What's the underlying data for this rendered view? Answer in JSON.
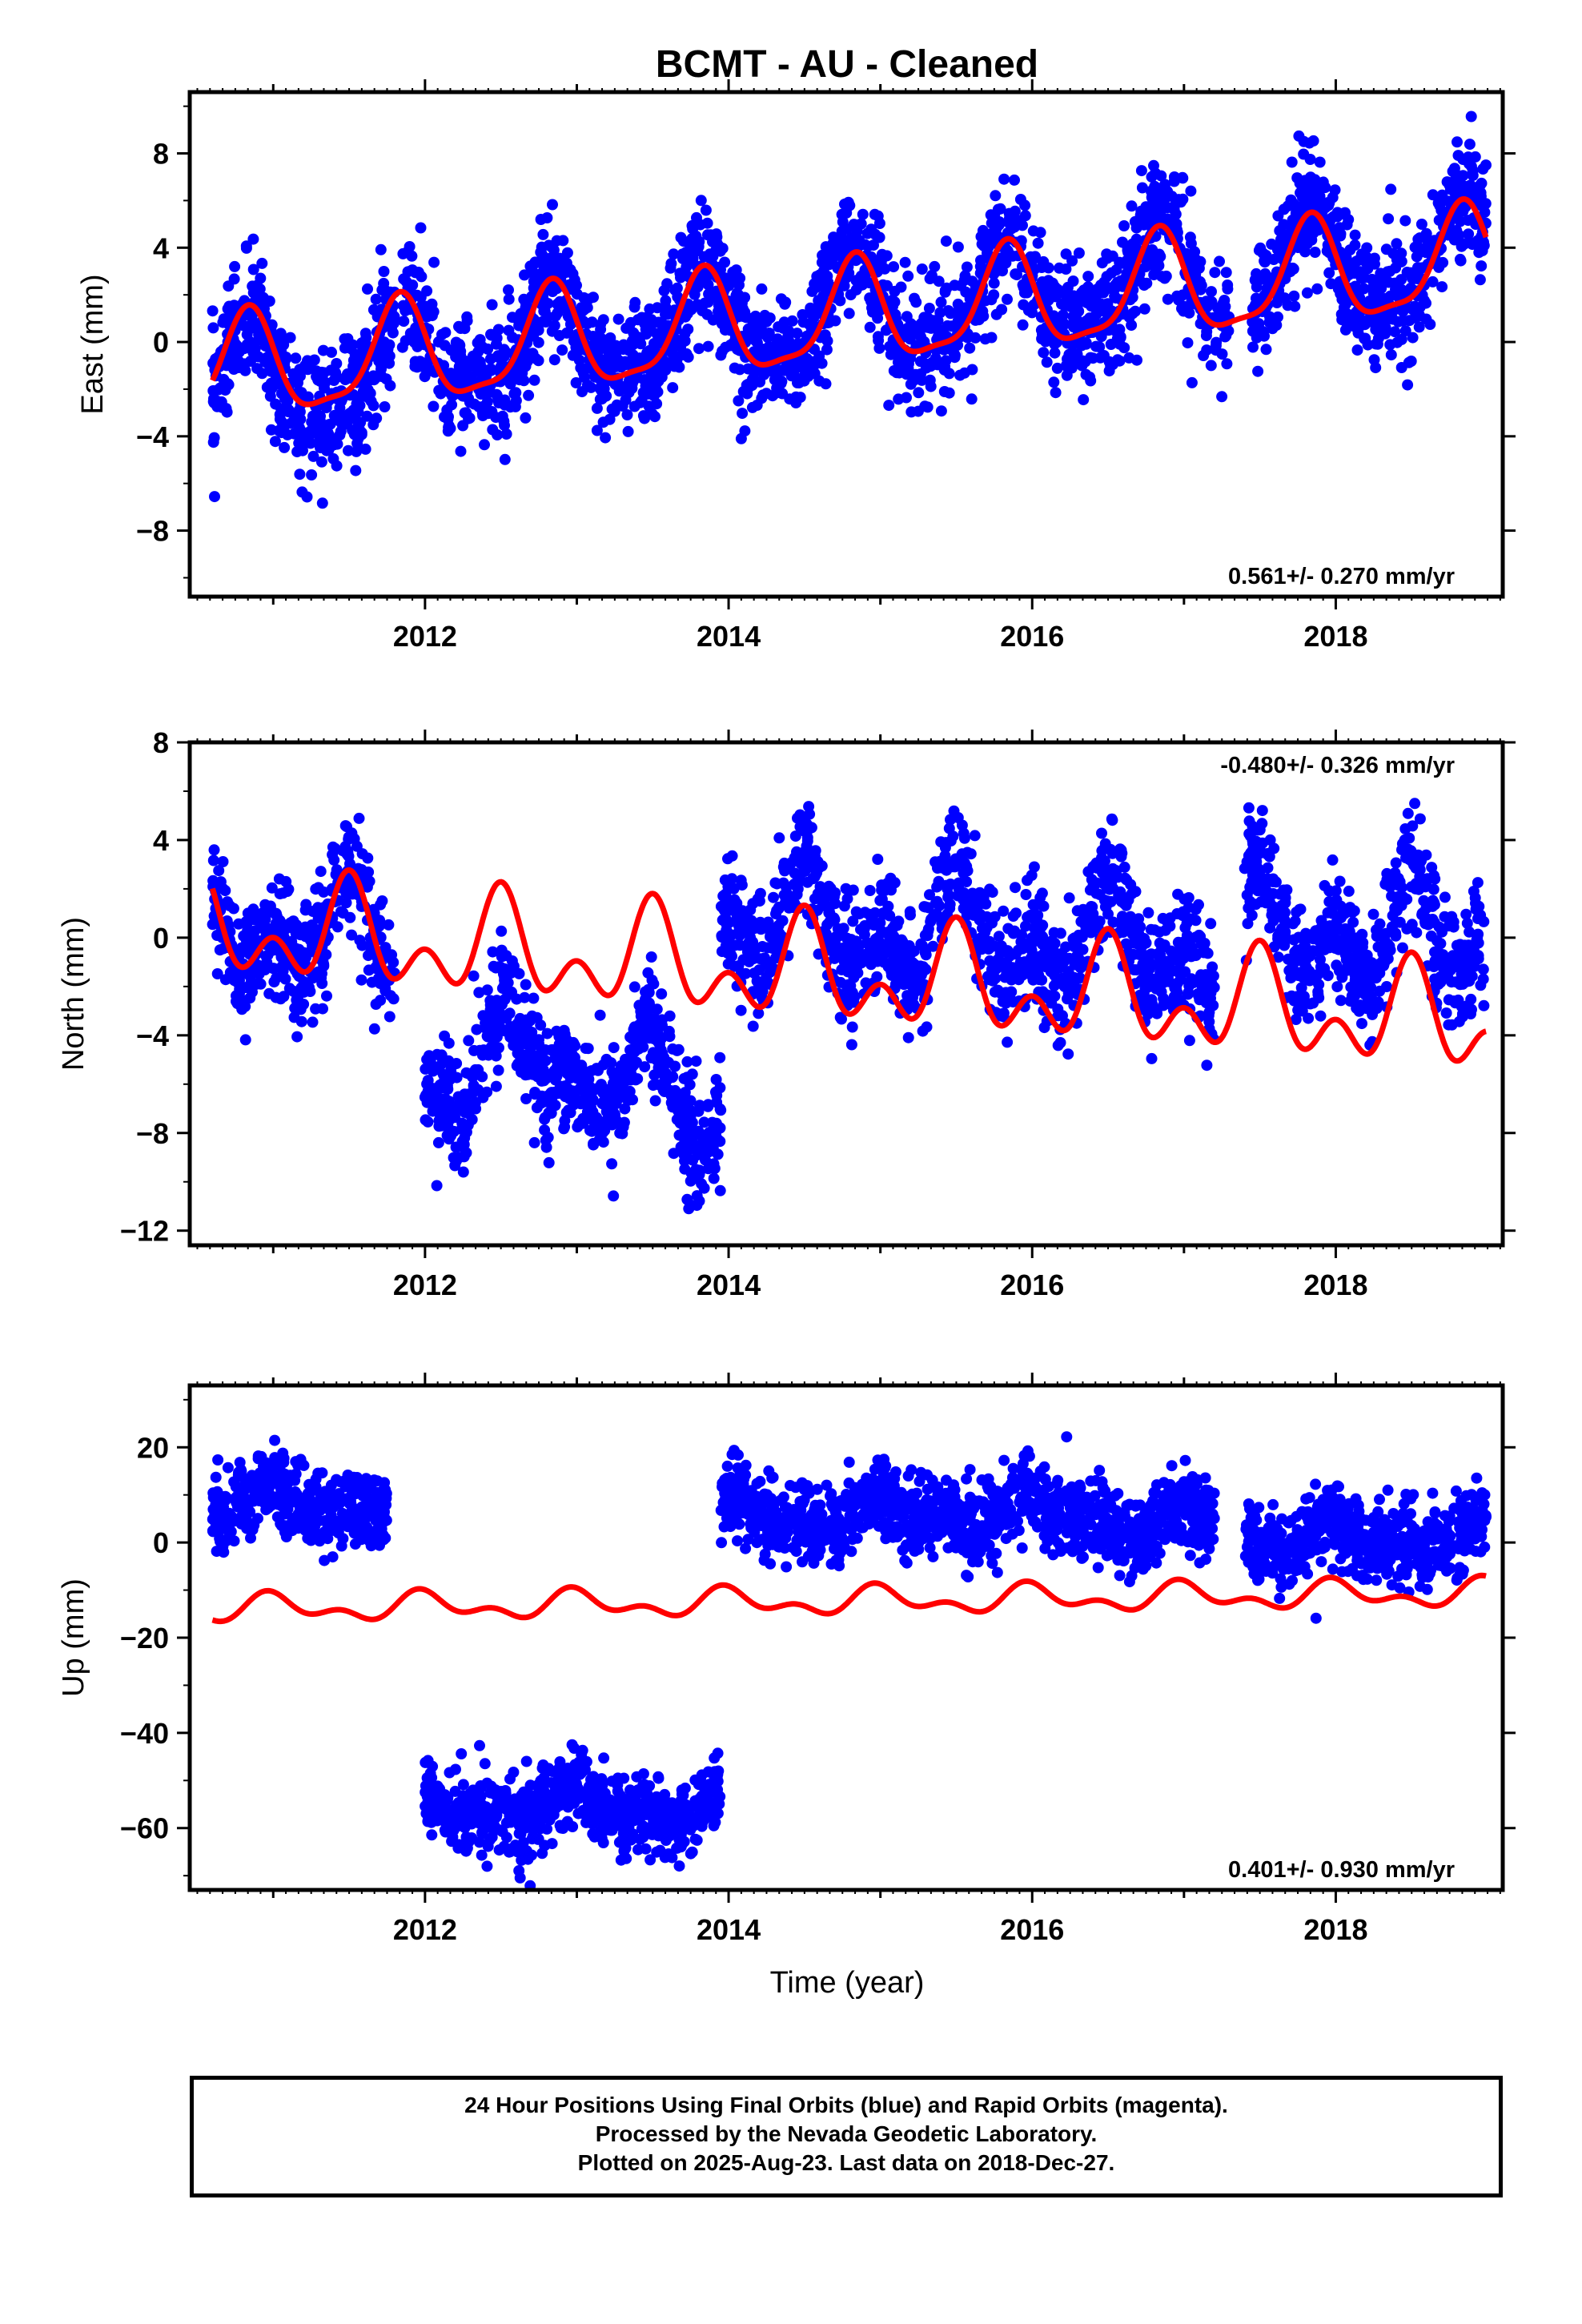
{
  "chart_data": {
    "type": "scatter",
    "title": "BCMT  - AU - Cleaned",
    "x_label": "Time (year)",
    "x_range": [
      2010.45,
      2019.1
    ],
    "x_ticks": [
      2012,
      2014,
      2016,
      2018
    ],
    "colors": {
      "points": "#0000ff",
      "model": "#ff0000",
      "frame": "#000000"
    },
    "data_start": 2010.6,
    "data_end": 2018.99,
    "panels": [
      {
        "name": "East",
        "ylabel": "East (mm)",
        "ylim": [
          -10.8,
          10.6
        ],
        "y_ticks": [
          -8,
          -4,
          0,
          4,
          8
        ],
        "rate": "0.561+/- 0.270 mm/yr",
        "rate_position": "bottom-right",
        "model": {
          "offset": -1.3,
          "slope": 0.561,
          "annual_amp": 2.15,
          "annual_peak": 2010.83,
          "semi_amp": 0.6,
          "semi_peak": 2010.85
        },
        "noise_sd": 1.3,
        "segments": [
          {
            "start": 2010.6,
            "end": 2011.8,
            "offset": -0.6,
            "n": 460
          },
          {
            "start": 2011.85,
            "end": 2013.0,
            "offset": 0.0,
            "n": 430
          },
          {
            "start": 2013.0,
            "end": 2014.0,
            "offset": 0.0,
            "n": 380
          },
          {
            "start": 2014.0,
            "end": 2016.5,
            "offset": 0.2,
            "n": 880
          },
          {
            "start": 2016.5,
            "end": 2017.3,
            "offset": 0.4,
            "n": 280
          },
          {
            "start": 2017.45,
            "end": 2018.99,
            "offset": 0.3,
            "n": 560
          }
        ]
      },
      {
        "name": "North",
        "ylabel": "North (mm)",
        "ylim": [
          -12.6,
          8.0
        ],
        "y_ticks": [
          -12,
          -8,
          -4,
          0,
          4,
          8
        ],
        "rate": "-0.480+/- 0.326 mm/yr",
        "rate_position": "top-right",
        "model": {
          "offset": 0.4,
          "slope": -0.48,
          "annual_amp": 1.5,
          "annual_peak": 2011.5,
          "semi_amp": 1.3,
          "semi_peak": 2011.5
        },
        "noise_sd": 1.2,
        "segments": [
          {
            "start": 2010.6,
            "end": 2011.8,
            "offset": 0.0,
            "n": 440
          },
          {
            "start": 2012.0,
            "end": 2012.5,
            "offset": -5.5,
            "n": 180
          },
          {
            "start": 2012.5,
            "end": 2013.0,
            "offset": -4.0,
            "n": 190
          },
          {
            "start": 2013.0,
            "end": 2013.5,
            "offset": -5.0,
            "n": 180
          },
          {
            "start": 2013.5,
            "end": 2013.95,
            "offset": -6.0,
            "n": 180
          },
          {
            "start": 2013.95,
            "end": 2016.5,
            "offset": 2.0,
            "n": 900
          },
          {
            "start": 2016.5,
            "end": 2017.2,
            "offset": 2.3,
            "n": 260
          },
          {
            "start": 2017.4,
            "end": 2018.99,
            "offset": 3.2,
            "n": 560
          }
        ]
      },
      {
        "name": "Up",
        "ylabel": "Up (mm)",
        "ylim": [
          -73,
          33
        ],
        "y_ticks": [
          -60,
          -40,
          -20,
          0,
          20
        ],
        "rate": "0.401+/- 0.930 mm/yr",
        "rate_position": "bottom-right",
        "model": {
          "offset": -14.0,
          "slope": 0.401,
          "annual_amp": 2.2,
          "annual_peak": 2011.0,
          "semi_amp": 1.6,
          "semi_peak": 2010.95
        },
        "noise_sd": 4.0,
        "segments": [
          {
            "start": 2010.6,
            "end": 2011.75,
            "offset": 22.0,
            "n": 440
          },
          {
            "start": 2012.0,
            "end": 2013.95,
            "offset": -43.0,
            "n": 760
          },
          {
            "start": 2013.95,
            "end": 2016.5,
            "offset": 18.0,
            "n": 920
          },
          {
            "start": 2016.5,
            "end": 2017.2,
            "offset": 15.0,
            "n": 260
          },
          {
            "start": 2017.4,
            "end": 2018.99,
            "offset": 12.0,
            "n": 580
          }
        ]
      }
    ]
  },
  "footer": {
    "line1": "24 Hour Positions Using Final Orbits (blue) and Rapid Orbits (magenta).",
    "line2": "Processed by the Nevada Geodetic Laboratory.",
    "line3": "Plotted on 2025-Aug-23. Last data on 2018-Dec-27."
  }
}
